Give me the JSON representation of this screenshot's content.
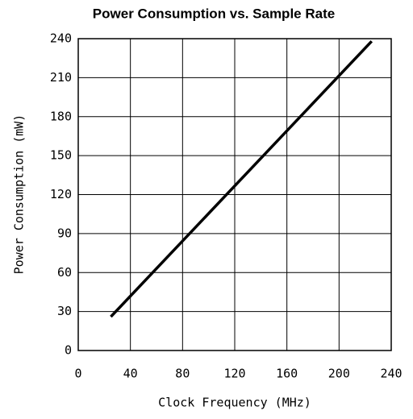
{
  "chart_data": {
    "type": "line",
    "title": "Power Consumption vs. Sample Rate",
    "xlabel": "Clock Frequency (MHz)",
    "ylabel": "Power Consumption (mW)",
    "x": [
      25,
      225
    ],
    "series": [
      {
        "name": "Power",
        "color": "#000000",
        "values": [
          26,
          238
        ]
      }
    ],
    "xlim": [
      0,
      240
    ],
    "xticks": [
      0,
      40,
      80,
      120,
      160,
      200,
      240
    ],
    "ylim": [
      0,
      240
    ],
    "yticks": [
      0,
      30,
      60,
      90,
      120,
      150,
      180,
      210,
      240
    ],
    "grid": true
  }
}
